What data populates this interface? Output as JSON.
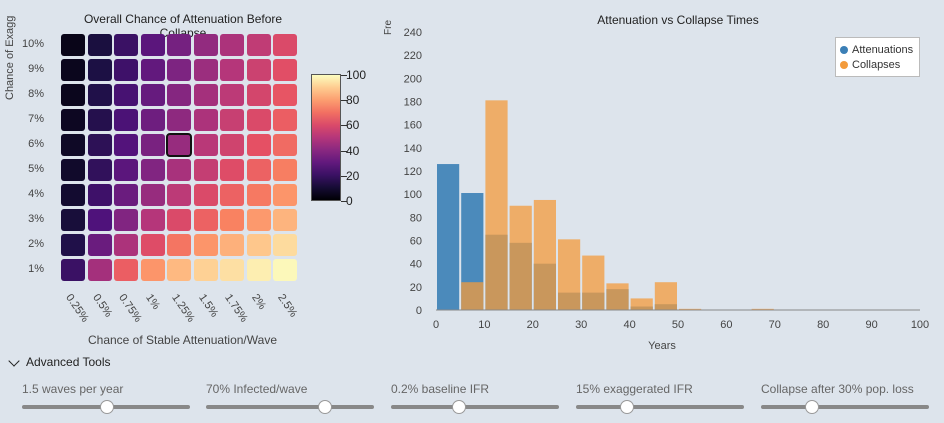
{
  "heatmap": {
    "title": "Overall Chance of Attenuation Before Collapse",
    "ylabel": "Chance of Exagg",
    "xlabel": "Chance of Stable Attenuation/Wave",
    "y_ticks": [
      "10%",
      "9%",
      "8%",
      "7%",
      "6%",
      "5%",
      "4%",
      "3%",
      "2%",
      "1%"
    ],
    "x_ticks": [
      "0.25%",
      "0.5%",
      "0.75%",
      "1%",
      "1.25%",
      "1.5%",
      "1.75%",
      "2%",
      "2.5%"
    ],
    "colorbar_ticks": [
      "100",
      "80",
      "60",
      "40",
      "20",
      "0"
    ],
    "selected_cell": {
      "row": "6%",
      "col": "1.25%"
    }
  },
  "histogram": {
    "ylabel": "Fre",
    "legend": [
      "Attenuations",
      "Collapses"
    ],
    "colors": {
      "attenuations": "#3b7fb6",
      "collapses": "#f39b3c"
    }
  },
  "chart_data": [
    {
      "type": "heatmap",
      "title": "Overall Chance of Attenuation Before Collapse",
      "xlabel": "Chance of Stable Attenuation/Wave",
      "ylabel": "Chance of Exagg",
      "x_categories": [
        "0.25%",
        "0.5%",
        "0.75%",
        "1%",
        "1.25%",
        "1.5%",
        "1.75%",
        "2%",
        "2.5%"
      ],
      "y_categories": [
        "10%",
        "9%",
        "8%",
        "7%",
        "6%",
        "5%",
        "4%",
        "3%",
        "2%",
        "1%"
      ],
      "values": [
        [
          4,
          12,
          20,
          28,
          35,
          42,
          48,
          53,
          60
        ],
        [
          5,
          13,
          21,
          30,
          37,
          44,
          50,
          56,
          62
        ],
        [
          5,
          14,
          23,
          31,
          39,
          46,
          52,
          58,
          64
        ],
        [
          6,
          15,
          24,
          33,
          41,
          48,
          55,
          60,
          66
        ],
        [
          7,
          17,
          26,
          36,
          43,
          51,
          57,
          63,
          69
        ],
        [
          8,
          18,
          28,
          38,
          47,
          54,
          61,
          67,
          73
        ],
        [
          9,
          21,
          32,
          43,
          52,
          60,
          67,
          72,
          78
        ],
        [
          11,
          25,
          38,
          50,
          60,
          67,
          74,
          79,
          85
        ],
        [
          14,
          32,
          48,
          61,
          71,
          78,
          84,
          89,
          93
        ],
        [
          20,
          46,
          66,
          78,
          86,
          91,
          94,
          97,
          99
        ]
      ],
      "colorbar_range": [
        0,
        100
      ]
    },
    {
      "type": "bar",
      "title": "Attenuation vs Collapse Times",
      "xlabel": "Years",
      "ylabel": "Fre",
      "xlim": [
        0,
        100
      ],
      "ylim": [
        0,
        240
      ],
      "x_ticks": [
        0,
        10,
        20,
        30,
        40,
        50,
        60,
        70,
        80,
        90,
        100
      ],
      "y_ticks": [
        0,
        20,
        40,
        60,
        80,
        100,
        120,
        140,
        160,
        180,
        200,
        220,
        240
      ],
      "bin_edges": [
        0,
        5,
        10,
        15,
        20,
        25,
        30,
        35,
        40,
        45,
        50,
        55,
        60,
        65,
        70,
        75,
        80,
        85,
        90,
        95,
        100
      ],
      "series": [
        {
          "name": "Attenuations",
          "values": [
            126,
            101,
            65,
            58,
            40,
            15,
            15,
            18,
            3,
            5,
            0,
            0,
            0,
            0,
            0,
            0,
            0,
            0,
            0,
            0
          ]
        },
        {
          "name": "Collapses",
          "values": [
            0,
            24,
            181,
            90,
            95,
            61,
            47,
            23,
            10,
            24,
            1,
            0,
            0,
            1,
            0,
            0,
            0,
            0,
            0,
            0
          ]
        }
      ]
    }
  ],
  "advanced_tools": {
    "label": "Advanced Tools",
    "sliders": [
      {
        "label": "1.5 waves per year",
        "value": 0.5
      },
      {
        "label": "70% Infected/wave",
        "value": 0.7
      },
      {
        "label": "0.2% baseline IFR",
        "value": 0.4
      },
      {
        "label": "15% exaggerated IFR",
        "value": 0.3
      },
      {
        "label": "Collapse after 30% pop. loss",
        "value": 0.3
      }
    ]
  }
}
